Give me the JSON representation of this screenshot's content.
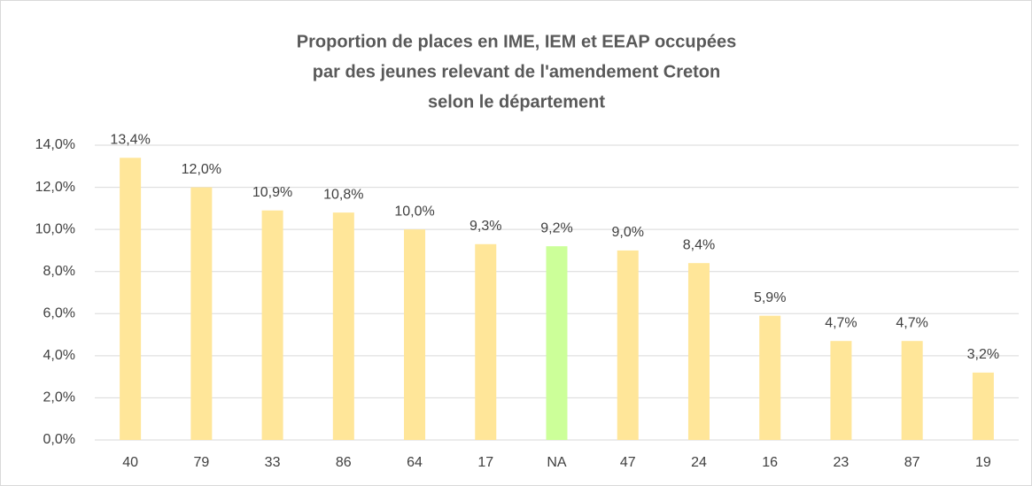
{
  "chart_data": {
    "type": "bar",
    "title": [
      "Proportion de places en IME, IEM et EEAP occupées",
      "par des jeunes relevant de l'amendement Creton",
      "selon le département"
    ],
    "categories": [
      "40",
      "79",
      "33",
      "86",
      "64",
      "17",
      "NA",
      "47",
      "24",
      "16",
      "23",
      "87",
      "19"
    ],
    "values": [
      13.4,
      12.0,
      10.9,
      10.8,
      10.0,
      9.3,
      9.2,
      9.0,
      8.4,
      5.9,
      4.7,
      4.7,
      3.2
    ],
    "value_labels": [
      "13,4%",
      "12,0%",
      "10,9%",
      "10,8%",
      "10,0%",
      "9,3%",
      "9,2%",
      "9,0%",
      "8,4%",
      "5,9%",
      "4,7%",
      "4,7%",
      "3,2%"
    ],
    "colors": [
      "#ffe699",
      "#ffe699",
      "#ffe699",
      "#ffe699",
      "#ffe699",
      "#ffe699",
      "#ccff99",
      "#ffe699",
      "#ffe699",
      "#ffe699",
      "#ffe699",
      "#ffe699",
      "#ffe699"
    ],
    "ylim": [
      0,
      14
    ],
    "yticks": [
      {
        "value": 0,
        "label": "0,0%"
      },
      {
        "value": 2,
        "label": "2,0%"
      },
      {
        "value": 4,
        "label": "4,0%"
      },
      {
        "value": 6,
        "label": "6,0%"
      },
      {
        "value": 8,
        "label": "8,0%"
      },
      {
        "value": 10,
        "label": "10,0%"
      },
      {
        "value": 12,
        "label": "12,0%"
      },
      {
        "value": 14,
        "label": "14,0%"
      }
    ],
    "grid": true
  }
}
